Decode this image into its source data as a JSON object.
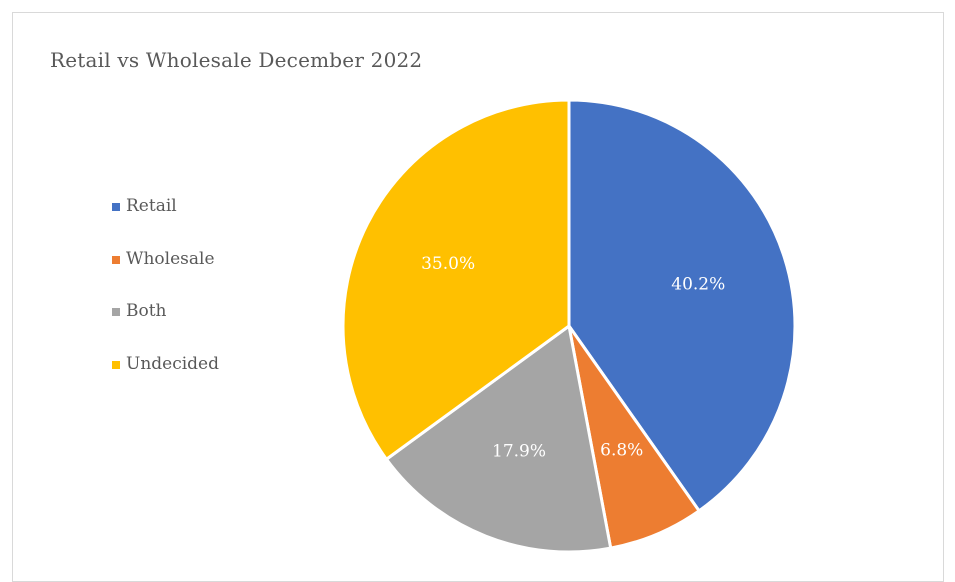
{
  "chart_data": {
    "type": "pie",
    "title": "Retail vs Wholesale December 2022",
    "categories": [
      "Retail",
      "Wholesale",
      "Both",
      "Undecided"
    ],
    "values": [
      40.2,
      6.8,
      17.9,
      35.0
    ],
    "labels": [
      "40.2%",
      "6.8%",
      "17.9%",
      "35.0%"
    ],
    "colors": [
      "#4472c4",
      "#ed7d31",
      "#a5a5a5",
      "#ffc000"
    ],
    "legend_position": "left",
    "start_angle": "12 o'clock, clockwise"
  }
}
